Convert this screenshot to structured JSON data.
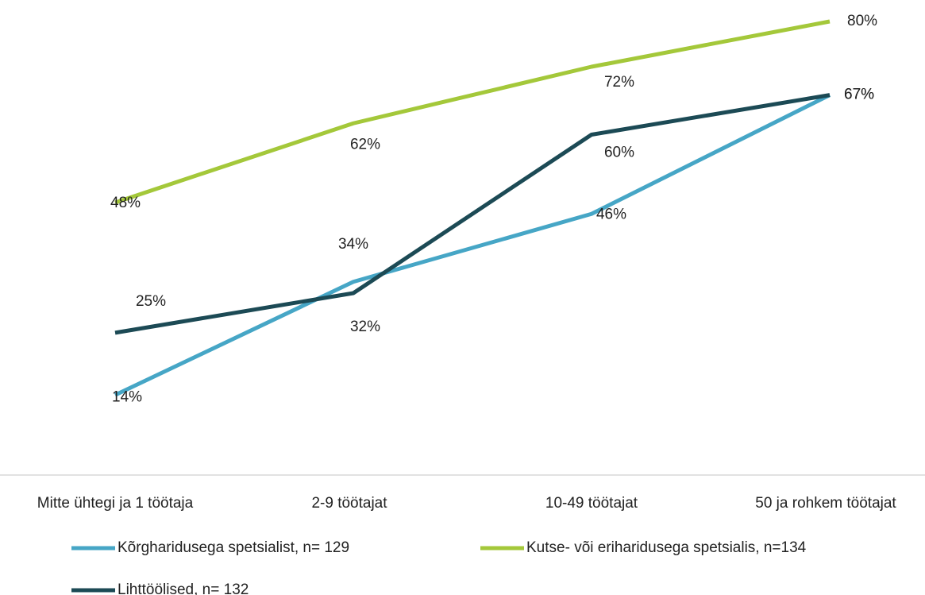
{
  "chart_data": {
    "type": "line",
    "categories": [
      "Mitte ühtegi ja 1 töötaja",
      "2-9 töötajat",
      "10-49 töötajat",
      "50 ja rohkem töötajat"
    ],
    "series": [
      {
        "name": "Kõrgharidusega spetsialist, n= 129",
        "color": "#46a6c6",
        "values": [
          14,
          34,
          46,
          67
        ],
        "value_labels": [
          "14%",
          "34%",
          "46%",
          "67%"
        ]
      },
      {
        "name": "Kutse- või eriharidusega spetsialis, n=134",
        "color": "#a4c83a",
        "values": [
          48,
          62,
          72,
          80
        ],
        "value_labels": [
          "48%",
          "62%",
          "72%",
          "80%"
        ]
      },
      {
        "name": "Lihttöölised, n= 132",
        "color": "#1c4a55",
        "values": [
          25,
          32,
          60,
          67
        ],
        "value_labels": [
          "25%",
          "32%",
          "60%",
          "67%"
        ]
      }
    ],
    "ylim": [
      0,
      80
    ]
  }
}
